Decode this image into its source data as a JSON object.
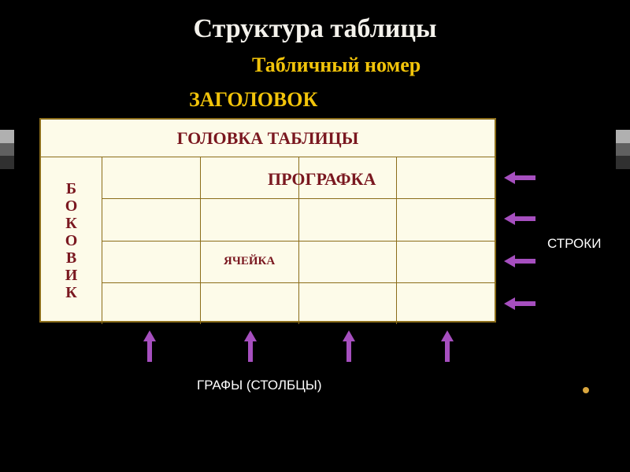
{
  "colors": {
    "bg": "#000000",
    "title": "#f4f2ec",
    "yellow": "#f2c40a",
    "tableBg": "#fdfbe9",
    "tableBorder": "#8b6d1a",
    "darkRed": "#7a1820",
    "arrow": "#a64fbf",
    "white": "#ffffff",
    "dot": "#d9a63e",
    "stripe1": "#b0b0b0",
    "stripe2": "#606060",
    "stripe3": "#303030"
  },
  "fonts": {
    "titleSize": 34,
    "labelSize": 26,
    "headerSize": 22,
    "sideSize": 20,
    "prografkaSize": 22,
    "cellSize": 15,
    "annotSize": 17
  },
  "text": {
    "title": "Структура таблицы",
    "tableNumber": "Табличный номер",
    "zagolovok": "ЗАГОЛОВОК",
    "header": "ГОЛОВКА ТАБЛИЦЫ",
    "sideLetters": [
      "Б",
      "О",
      "К",
      "О",
      "В",
      "И",
      "К"
    ],
    "prografka": "ПРОГРАФКА",
    "yacheyka": "ЯЧЕЙКА",
    "stroki": "СТРОКИ",
    "grafy": "ГРАФЫ (СТОЛБЦЫ)"
  },
  "layout": {
    "tableLeft": 50,
    "tableTop": 150,
    "tableW": 580,
    "tableH": 260,
    "headerH": 48,
    "sideW": 78,
    "rows": 4,
    "cols": 4,
    "rowArrowsY": [
      218,
      270,
      324,
      378
    ],
    "rowArrowX": 640,
    "colArrowsX": [
      182,
      310,
      435,
      560
    ],
    "colArrowY": 420
  }
}
